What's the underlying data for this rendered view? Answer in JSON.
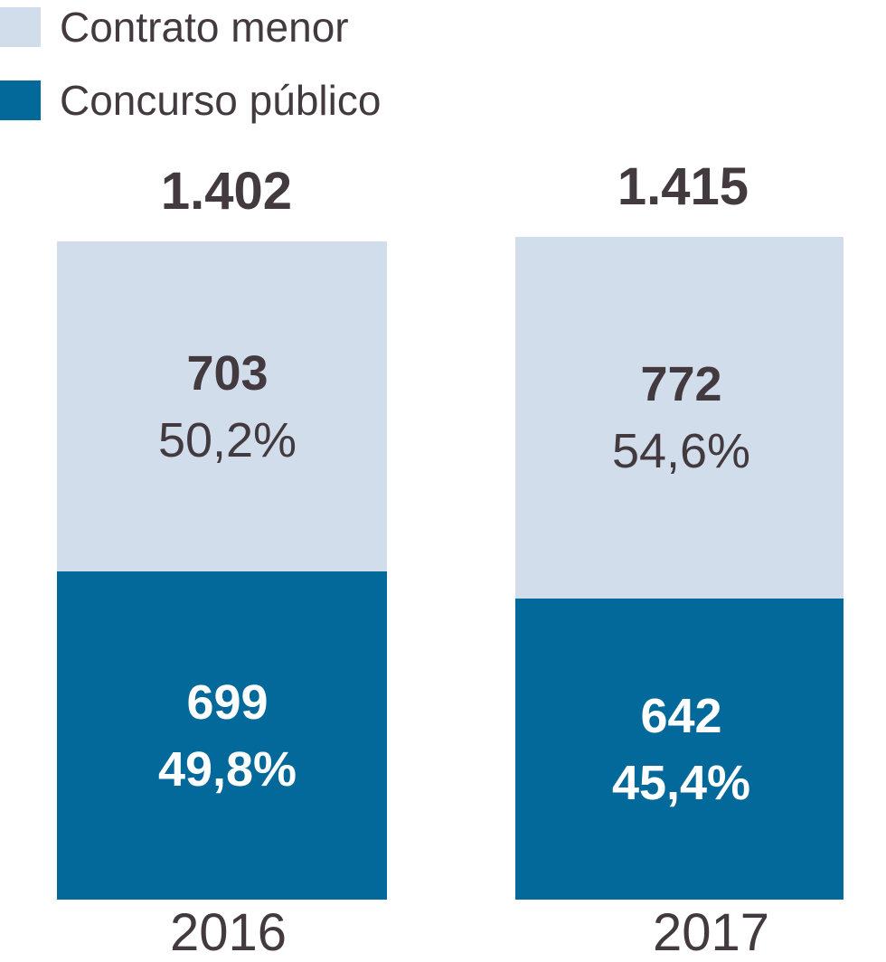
{
  "chart_data": {
    "type": "bar",
    "stacked": true,
    "orientation": "vertical",
    "title": "",
    "categories": [
      "2016",
      "2017"
    ],
    "series": [
      {
        "name": "Contrato menor",
        "color": "#d2ddec",
        "values": [
          703,
          772
        ],
        "percent_labels": [
          "50,2%",
          "54,6%"
        ]
      },
      {
        "name": "Concurso público",
        "color": "#03689a",
        "values": [
          699,
          642
        ],
        "percent_labels": [
          "49,8%",
          "45,4%"
        ]
      }
    ],
    "totals": [
      1402,
      1415
    ],
    "total_labels": [
      "1.402",
      "1.415"
    ],
    "legend_position": "top-left",
    "grid": false,
    "axes": "none",
    "value_labels_inside_segments": true
  },
  "colors": {
    "background": "#ffffff",
    "text": "#423a3e",
    "value_on_dark": "#ffffff"
  }
}
